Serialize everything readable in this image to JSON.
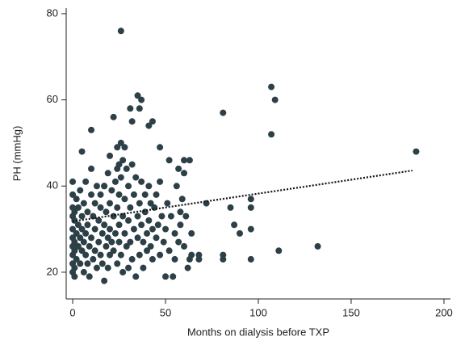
{
  "chart_data": {
    "type": "scatter",
    "x_label": "Months on dialysis before TXP",
    "y_label": "PH (mmHg)",
    "color": "#2d4047",
    "xlim": [
      -3.5,
      203.5
    ],
    "ylim": [
      13.8,
      81.3
    ],
    "xticks": [
      0,
      50,
      100,
      150,
      200
    ],
    "yticks": [
      20,
      40,
      60,
      80
    ],
    "x": [
      26,
      107,
      109,
      81,
      107,
      185,
      132,
      111,
      96,
      81,
      81,
      87,
      85,
      90,
      96,
      96,
      96,
      72,
      64,
      64,
      68,
      68,
      58,
      60,
      63,
      60,
      57,
      52,
      47,
      43,
      41,
      37,
      35,
      36,
      31,
      32,
      22,
      10,
      5,
      26,
      28,
      24,
      25,
      20,
      17,
      0,
      0,
      0,
      0,
      0,
      0,
      0,
      0,
      0,
      0,
      1,
      1,
      1,
      1,
      1,
      1,
      2,
      2,
      2,
      3,
      3,
      3,
      4,
      4,
      4,
      5,
      5,
      5,
      6,
      6,
      6,
      7,
      7,
      7,
      8,
      8,
      8,
      9,
      9,
      10,
      10,
      10,
      11,
      11,
      12,
      12,
      12,
      13,
      13,
      14,
      14,
      15,
      15,
      15,
      16,
      16,
      17,
      17,
      17,
      18,
      18,
      19,
      19,
      19,
      20,
      20,
      20,
      21,
      21,
      22,
      22,
      23,
      23,
      24,
      24,
      24,
      25,
      25,
      25,
      26,
      26,
      27,
      27,
      27,
      28,
      28,
      29,
      29,
      30,
      30,
      30,
      31,
      31,
      32,
      32,
      33,
      33,
      34,
      34,
      35,
      35,
      36,
      36,
      37,
      37,
      38,
      38,
      39,
      39,
      40,
      40,
      41,
      41,
      42,
      42,
      43,
      43,
      44,
      45,
      45,
      46,
      47,
      47,
      48,
      49,
      50,
      50,
      51,
      52,
      53,
      54,
      55,
      55,
      56,
      57,
      58,
      59,
      60,
      61,
      62,
      63
    ],
    "values": [
      76,
      63,
      60,
      57,
      52,
      48,
      26,
      25,
      23,
      23,
      24,
      31,
      35,
      29,
      35,
      37,
      30,
      36,
      29,
      24,
      24,
      23,
      34,
      46,
      46,
      43,
      44,
      46,
      49,
      55,
      54,
      60,
      61,
      58,
      58,
      55,
      56,
      53,
      48,
      50,
      49,
      49,
      45,
      47,
      40,
      20,
      22,
      24,
      26,
      28,
      30,
      33,
      35,
      38,
      41,
      19,
      21,
      25,
      27,
      32,
      34,
      23,
      29,
      37,
      26,
      31,
      35,
      22,
      28,
      39,
      25,
      30,
      33,
      20,
      27,
      36,
      24,
      29,
      41,
      22,
      31,
      34,
      26,
      19,
      28,
      38,
      44,
      23,
      33,
      25,
      30,
      36,
      21,
      40,
      27,
      32,
      24,
      35,
      38,
      29,
      22,
      18,
      31,
      40,
      26,
      34,
      28,
      21,
      43,
      30,
      36,
      24,
      39,
      27,
      33,
      25,
      29,
      41,
      22,
      35,
      44,
      31,
      27,
      38,
      24,
      42,
      33,
      20,
      46,
      29,
      37,
      26,
      44,
      32,
      21,
      40,
      35,
      27,
      23,
      45,
      30,
      38,
      19,
      42,
      28,
      33,
      36,
      24,
      31,
      41,
      27,
      21,
      34,
      38,
      29,
      25,
      32,
      40,
      26,
      36,
      23,
      30,
      35,
      28,
      38,
      31,
      24,
      41,
      33,
      27,
      19,
      30,
      36,
      25,
      33,
      19,
      29,
      23,
      40,
      27,
      31,
      37,
      26,
      33,
      21,
      23
    ],
    "trend_line": {
      "x": [
        0,
        183
      ],
      "y": [
        31.8,
        43.6
      ]
    }
  }
}
